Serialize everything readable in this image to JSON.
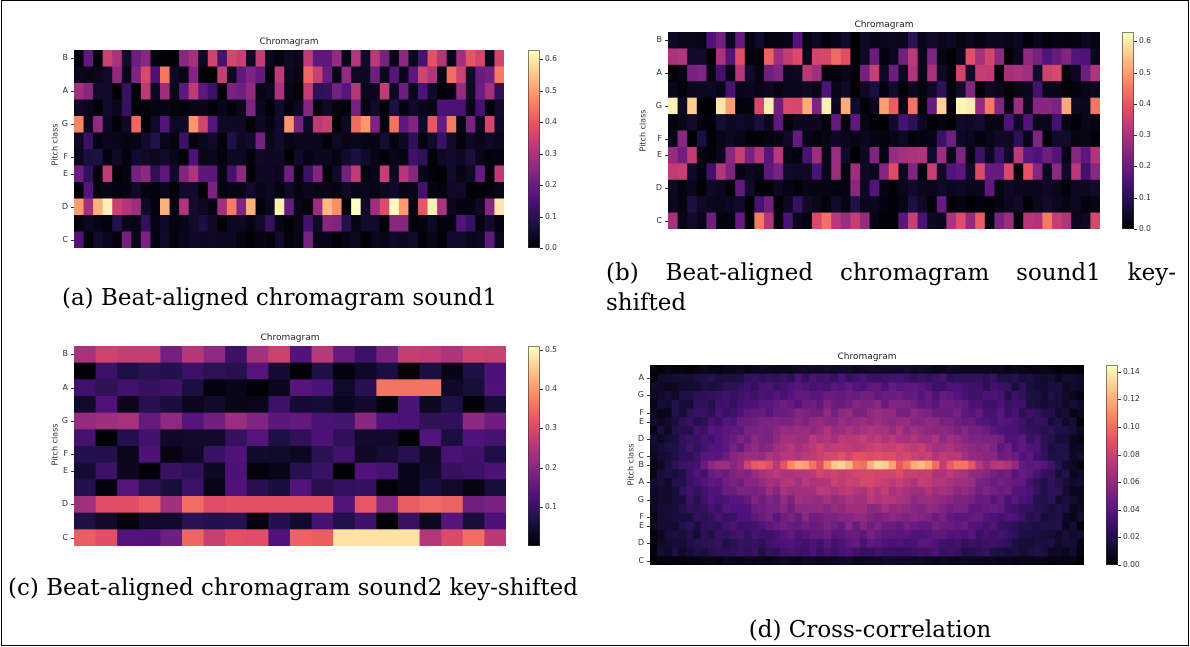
{
  "chart_data": [
    {
      "id": "a",
      "type": "heatmap",
      "title": "Chromagram",
      "ylabel": "Pitch class",
      "ytick_labels": [
        "C",
        "D",
        "E",
        "F",
        "G",
        "A",
        "B"
      ],
      "colorbar_ticks": [
        "0.0",
        "0.1",
        "0.2",
        "0.3",
        "0.4",
        "0.5",
        "0.6"
      ],
      "colorbar_range": [
        0,
        0.63
      ],
      "colormap": "magma",
      "n_rows": 12,
      "n_cols": 45,
      "seed": 11,
      "hot_rows": {
        "2": 0.55,
        "7": 0.45,
        "10": 0.4,
        "11": 0.35,
        "4": 0.3,
        "9": 0.3
      },
      "caption": "(a) Beat-aligned chromagram sound1"
    },
    {
      "id": "b",
      "type": "heatmap",
      "title": "Chromagram",
      "ylabel": "Pitch class",
      "ytick_labels": [
        "C",
        "D",
        "E",
        "F",
        "G",
        "A",
        "B"
      ],
      "colorbar_ticks": [
        "0.0",
        "0.1",
        "0.2",
        "0.3",
        "0.4",
        "0.5",
        "0.6"
      ],
      "colorbar_range": [
        0,
        0.63
      ],
      "colormap": "magma",
      "n_rows": 12,
      "n_cols": 45,
      "seed": 23,
      "hot_rows": {
        "0": 0.4,
        "3": 0.35,
        "4": 0.3,
        "7": 0.55,
        "9": 0.35,
        "10": 0.4
      },
      "caption": "(b) Beat-aligned chromagram sound1 key-shifted"
    },
    {
      "id": "c",
      "type": "heatmap",
      "title": "Chromagram",
      "ylabel": "Pitch class",
      "ytick_labels": [
        "C",
        "D",
        "E",
        "F",
        "G",
        "A",
        "B"
      ],
      "colorbar_ticks": [
        "0.1",
        "0.2",
        "0.3",
        "0.4",
        "0.5"
      ],
      "colorbar_range": [
        0,
        0.51
      ],
      "colormap": "magma",
      "n_rows": 12,
      "n_cols": 20,
      "seed": 37,
      "hot_rows": {
        "0": 0.3,
        "2": 0.3,
        "7": 0.2,
        "11": 0.25
      },
      "caption": "(c) Beat-aligned chromagram sound2 key-shifted"
    },
    {
      "id": "d",
      "type": "heatmap",
      "title": "Chromagram",
      "ylabel": "Pitch class",
      "ytick_labels": [
        "C",
        "D",
        "E",
        "F",
        "G",
        "A",
        "B",
        "C",
        "D",
        "E",
        "F",
        "G",
        "A"
      ],
      "colorbar_ticks": [
        "0.00",
        "0.02",
        "0.04",
        "0.06",
        "0.08",
        "0.10",
        "0.12",
        "0.14"
      ],
      "colorbar_range": [
        0,
        0.145
      ],
      "colormap": "magma",
      "n_rows": 23,
      "n_cols": 60,
      "seed": 5,
      "hot_rows": {
        "11": 0.14
      },
      "caption": "(d) Cross-correlation"
    }
  ]
}
